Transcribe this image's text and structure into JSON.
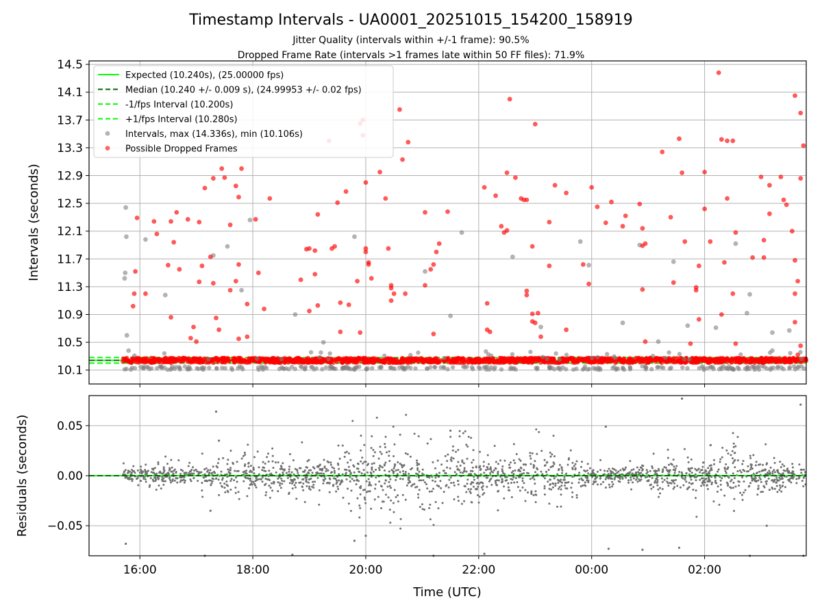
{
  "chart_data": [
    {
      "type": "scatter",
      "panel": "intervals",
      "title": "Timestamp Intervals - UA0001_20251015_154200_158919",
      "subtitle_1": "Jitter Quality (intervals within +/-1 frame): 90.5%",
      "subtitle_2": "Dropped Frame Rate (intervals >1 frames late within 50 FF files): 71.9%",
      "xlabel": "",
      "ylabel": "Intervals (seconds)",
      "xlim_hours": [
        15.1,
        27.8
      ],
      "ylim": [
        9.9,
        14.55
      ],
      "x_ticks": [
        16,
        18,
        20,
        22,
        24,
        26
      ],
      "x_tick_labels": [
        "16:00",
        "18:00",
        "20:00",
        "22:00",
        "00:00",
        "02:00"
      ],
      "y_ticks": [
        "10.1",
        "10.5",
        "10.9",
        "11.3",
        "11.7",
        "12.1",
        "12.5",
        "12.9",
        "13.3",
        "13.7",
        "14.1",
        "14.5"
      ],
      "grid": true,
      "data_start_hour": 15.7,
      "data_end_hour": 27.8,
      "reference_lines": {
        "expected": 10.24,
        "median": 10.24,
        "minus_1fps": 10.2,
        "plus_1fps": 10.28
      },
      "legend_position": "upper-left",
      "legend": [
        {
          "label": "Expected (10.240s), (25.00000 fps)",
          "color": "#00ff00",
          "style": "solid"
        },
        {
          "label": "Median (10.240 +/- 0.009 s), (24.99953 +/- 0.02 fps)",
          "color": "#006400",
          "style": "dashed"
        },
        {
          "label": "-1/fps Interval (10.200s)",
          "color": "#00ff00",
          "style": "dashed"
        },
        {
          "label": "+1/fps Interval (10.280s)",
          "color": "#00ff00",
          "style": "dashed"
        },
        {
          "label": "Intervals, max (14.336s), min (10.106s)",
          "color": "#808080",
          "style": "marker"
        },
        {
          "label": "Possible Dropped Frames",
          "color": "#ff0000",
          "style": "marker"
        }
      ],
      "series": [
        {
          "name": "Intervals",
          "color": "#808080",
          "points": [
            [
              15.75,
              12.44
            ],
            [
              15.76,
              12.02
            ],
            [
              15.74,
              11.5
            ],
            [
              15.73,
              11.42
            ],
            [
              15.77,
              10.6
            ],
            [
              15.8,
              10.38
            ],
            [
              16.1,
              11.98
            ],
            [
              16.45,
              11.18
            ],
            [
              17.55,
              11.88
            ],
            [
              17.3,
              11.75
            ],
            [
              17.95,
              12.26
            ],
            [
              17.8,
              11.25
            ],
            [
              18.75,
              10.9
            ],
            [
              19.25,
              10.5
            ],
            [
              19.8,
              12.02
            ],
            [
              21.05,
              11.52
            ],
            [
              21.5,
              10.88
            ],
            [
              21.7,
              12.08
            ],
            [
              22.6,
              11.73
            ],
            [
              23.1,
              10.72
            ],
            [
              23.8,
              11.95
            ],
            [
              23.95,
              11.61
            ],
            [
              24.55,
              10.78
            ],
            [
              24.85,
              11.9
            ],
            [
              25.45,
              11.66
            ],
            [
              25.18,
              10.51
            ],
            [
              25.7,
              10.74
            ],
            [
              26.2,
              10.71
            ],
            [
              26.55,
              11.92
            ],
            [
              26.8,
              11.19
            ],
            [
              26.75,
              10.92
            ],
            [
              27.2,
              10.38
            ],
            [
              27.5,
              10.67
            ],
            [
              27.2,
              10.64
            ]
          ]
        },
        {
          "name": "Possible Dropped Frames",
          "color": "#ff0000",
          "points": [
            [
              15.95,
              12.29
            ],
            [
              15.92,
              11.52
            ],
            [
              15.9,
              11.2
            ],
            [
              15.88,
              11.02
            ],
            [
              16.1,
              11.2
            ],
            [
              16.25,
              12.24
            ],
            [
              16.3,
              12.06
            ],
            [
              16.55,
              12.24
            ],
            [
              16.5,
              11.61
            ],
            [
              16.6,
              11.94
            ],
            [
              16.65,
              12.37
            ],
            [
              16.7,
              11.55
            ],
            [
              16.55,
              10.86
            ],
            [
              16.85,
              12.27
            ],
            [
              16.95,
              10.72
            ],
            [
              17.05,
              12.23
            ],
            [
              17.05,
              11.37
            ],
            [
              17.1,
              11.6
            ],
            [
              17.15,
              12.72
            ],
            [
              17.0,
              10.51
            ],
            [
              16.9,
              10.56
            ],
            [
              17.25,
              11.73
            ],
            [
              17.3,
              12.86
            ],
            [
              17.3,
              11.35
            ],
            [
              17.35,
              10.85
            ],
            [
              17.4,
              10.68
            ],
            [
              17.45,
              13.0
            ],
            [
              17.5,
              12.87
            ],
            [
              17.6,
              11.25
            ],
            [
              17.6,
              12.19
            ],
            [
              17.7,
              12.75
            ],
            [
              17.7,
              11.38
            ],
            [
              17.75,
              11.62
            ],
            [
              17.75,
              12.59
            ],
            [
              17.8,
              13.0
            ],
            [
              17.9,
              11.05
            ],
            [
              17.9,
              10.58
            ],
            [
              17.75,
              10.55
            ],
            [
              18.05,
              12.27
            ],
            [
              18.1,
              11.5
            ],
            [
              18.3,
              12.57
            ],
            [
              18.2,
              10.98
            ],
            [
              18.95,
              11.84
            ],
            [
              18.85,
              11.4
            ],
            [
              19.0,
              11.85
            ],
            [
              19.1,
              11.82
            ],
            [
              19.15,
              12.34
            ],
            [
              19.0,
              10.95
            ],
            [
              19.1,
              11.48
            ],
            [
              19.15,
              11.03
            ],
            [
              19.35,
              13.4
            ],
            [
              19.45,
              11.88
            ],
            [
              19.4,
              11.85
            ],
            [
              19.5,
              12.51
            ],
            [
              19.55,
              11.07
            ],
            [
              19.55,
              10.65
            ],
            [
              19.65,
              12.67
            ],
            [
              19.7,
              11.04
            ],
            [
              19.9,
              13.65
            ],
            [
              19.95,
              13.7
            ],
            [
              19.95,
              13.48
            ],
            [
              20.0,
              12.8
            ],
            [
              19.85,
              11.38
            ],
            [
              19.9,
              10.64
            ],
            [
              20.05,
              11.65
            ],
            [
              20.05,
              11.62
            ],
            [
              20.0,
              11.85
            ],
            [
              20.0,
              11.8
            ],
            [
              20.1,
              11.42
            ],
            [
              20.25,
              12.95
            ],
            [
              20.35,
              12.57
            ],
            [
              20.4,
              11.85
            ],
            [
              20.45,
              11.32
            ],
            [
              20.45,
              11.28
            ],
            [
              20.45,
              11.1
            ],
            [
              20.5,
              11.2
            ],
            [
              20.6,
              13.85
            ],
            [
              20.65,
              13.13
            ],
            [
              20.75,
              13.38
            ],
            [
              20.7,
              11.2
            ],
            [
              21.05,
              12.37
            ],
            [
              21.05,
              11.32
            ],
            [
              21.15,
              11.55
            ],
            [
              21.2,
              11.62
            ],
            [
              21.25,
              11.8
            ],
            [
              21.3,
              11.92
            ],
            [
              21.45,
              12.38
            ],
            [
              21.2,
              10.62
            ],
            [
              22.15,
              11.06
            ],
            [
              22.1,
              12.73
            ],
            [
              22.15,
              10.68
            ],
            [
              22.2,
              10.65
            ],
            [
              22.3,
              12.61
            ],
            [
              22.4,
              12.17
            ],
            [
              22.45,
              12.08
            ],
            [
              22.5,
              12.11
            ],
            [
              22.55,
              14.0
            ],
            [
              22.5,
              12.94
            ],
            [
              22.65,
              12.87
            ],
            [
              22.75,
              12.57
            ],
            [
              22.8,
              12.55
            ],
            [
              22.85,
              12.55
            ],
            [
              22.85,
              11.24
            ],
            [
              22.85,
              11.18
            ],
            [
              22.95,
              11.88
            ],
            [
              22.95,
              10.91
            ],
            [
              22.95,
              10.8
            ],
            [
              23.0,
              10.78
            ],
            [
              23.0,
              13.64
            ],
            [
              23.05,
              10.92
            ],
            [
              23.1,
              10.58
            ],
            [
              23.25,
              12.23
            ],
            [
              23.25,
              11.6
            ],
            [
              23.35,
              12.76
            ],
            [
              23.55,
              12.65
            ],
            [
              23.55,
              10.68
            ],
            [
              23.85,
              11.62
            ],
            [
              23.95,
              11.34
            ],
            [
              24.0,
              12.73
            ],
            [
              24.1,
              12.45
            ],
            [
              24.25,
              12.22
            ],
            [
              24.35,
              12.52
            ],
            [
              24.6,
              12.32
            ],
            [
              24.55,
              12.17
            ],
            [
              24.85,
              12.49
            ],
            [
              24.9,
              12.14
            ],
            [
              24.95,
              11.92
            ],
            [
              24.9,
              11.89
            ],
            [
              24.9,
              11.26
            ],
            [
              24.95,
              10.51
            ],
            [
              25.25,
              13.24
            ],
            [
              25.4,
              12.3
            ],
            [
              25.45,
              11.36
            ],
            [
              25.55,
              13.43
            ],
            [
              25.6,
              12.94
            ],
            [
              25.65,
              11.95
            ],
            [
              25.85,
              11.29
            ],
            [
              25.85,
              11.25
            ],
            [
              25.9,
              11.6
            ],
            [
              25.9,
              10.83
            ],
            [
              25.75,
              10.48
            ],
            [
              26.0,
              12.95
            ],
            [
              26.0,
              12.42
            ],
            [
              26.1,
              11.95
            ],
            [
              26.25,
              14.38
            ],
            [
              26.3,
              13.42
            ],
            [
              26.4,
              13.4
            ],
            [
              26.4,
              12.57
            ],
            [
              26.35,
              11.65
            ],
            [
              26.3,
              10.9
            ],
            [
              26.5,
              13.4
            ],
            [
              26.55,
              12.08
            ],
            [
              26.5,
              11.2
            ],
            [
              26.55,
              10.48
            ],
            [
              26.85,
              11.72
            ],
            [
              27.0,
              12.88
            ],
            [
              27.05,
              11.97
            ],
            [
              27.05,
              11.72
            ],
            [
              27.15,
              12.76
            ],
            [
              27.15,
              12.35
            ],
            [
              27.35,
              12.88
            ],
            [
              27.4,
              12.55
            ],
            [
              27.45,
              12.48
            ],
            [
              27.55,
              12.1
            ],
            [
              27.6,
              11.68
            ],
            [
              27.6,
              11.2
            ],
            [
              27.6,
              10.79
            ],
            [
              27.65,
              11.38
            ],
            [
              27.7,
              12.86
            ],
            [
              27.6,
              14.05
            ],
            [
              27.7,
              13.8
            ],
            [
              27.75,
              13.33
            ],
            [
              27.7,
              10.45
            ],
            [
              27.65,
              10.32
            ]
          ]
        }
      ],
      "baseline_red_band": 10.24,
      "baseline_gray_band": 10.13
    },
    {
      "type": "scatter",
      "panel": "residuals",
      "xlabel": "Time (UTC)",
      "ylabel": "Residuals (seconds)",
      "xlim_hours": [
        15.1,
        27.8
      ],
      "ylim": [
        -0.08,
        0.08
      ],
      "y_ticks": [
        0.05,
        0.0,
        -0.05
      ],
      "y_tick_labels": [
        "0.05",
        "0.00",
        "−0.05"
      ],
      "x_ticks": [
        16,
        18,
        20,
        22,
        24,
        26
      ],
      "x_tick_labels": [
        "16:00",
        "18:00",
        "20:00",
        "22:00",
        "00:00",
        "02:00"
      ],
      "grid": true,
      "expected_line": 0.0,
      "median_line": 0.0,
      "residual_spread_profile": [
        [
          15.7,
          0.006
        ],
        [
          16.5,
          0.008
        ],
        [
          17.0,
          0.007
        ],
        [
          17.5,
          0.012
        ],
        [
          18.0,
          0.016
        ],
        [
          18.5,
          0.01
        ],
        [
          19.0,
          0.012
        ],
        [
          19.5,
          0.018
        ],
        [
          20.0,
          0.022
        ],
        [
          20.5,
          0.026
        ],
        [
          21.0,
          0.022
        ],
        [
          21.5,
          0.026
        ],
        [
          22.0,
          0.018
        ],
        [
          22.5,
          0.014
        ],
        [
          23.0,
          0.022
        ],
        [
          23.5,
          0.018
        ],
        [
          24.0,
          0.008
        ],
        [
          24.5,
          0.006
        ],
        [
          25.0,
          0.008
        ],
        [
          25.5,
          0.014
        ],
        [
          26.0,
          0.012
        ],
        [
          26.5,
          0.02
        ],
        [
          27.0,
          0.014
        ],
        [
          27.5,
          0.008
        ],
        [
          27.8,
          0.008
        ]
      ],
      "outliers": [
        [
          15.75,
          -0.068
        ],
        [
          17.35,
          0.064
        ],
        [
          17.25,
          -0.035
        ],
        [
          17.15,
          -0.08
        ],
        [
          24.25,
          0.049
        ],
        [
          25.6,
          0.077
        ],
        [
          27.7,
          0.071
        ],
        [
          27.75,
          -0.08
        ],
        [
          26.8,
          -0.08
        ],
        [
          25.55,
          -0.072
        ],
        [
          24.9,
          -0.074
        ],
        [
          24.3,
          -0.073
        ],
        [
          22.1,
          -0.078
        ],
        [
          21.2,
          -0.08
        ],
        [
          20.0,
          -0.06
        ],
        [
          19.8,
          -0.065
        ],
        [
          18.7,
          -0.079
        ],
        [
          17.4,
          0.035
        ],
        [
          27.1,
          -0.05
        ],
        [
          21.5,
          0.045
        ]
      ]
    }
  ]
}
